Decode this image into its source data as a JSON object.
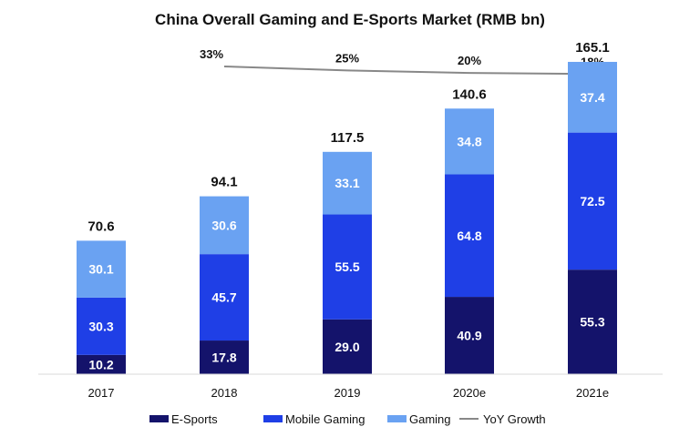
{
  "chart_data": {
    "type": "bar",
    "stacked": true,
    "title": "China Overall Gaming and E-Sports Market (RMB bn)",
    "categories": [
      "2017",
      "2018",
      "2019",
      "2020e",
      "2021e"
    ],
    "series": [
      {
        "name": "E-Sports",
        "color": "#14136b",
        "values": [
          10.2,
          17.8,
          29.0,
          40.9,
          55.3
        ],
        "labels": [
          "10.2",
          "17.8",
          "29.0",
          "40.9",
          "55.3"
        ]
      },
      {
        "name": "Mobile Gaming",
        "color": "#1f3fe6",
        "values": [
          30.3,
          45.7,
          55.5,
          64.8,
          72.5
        ],
        "labels": [
          "30.3",
          "45.7",
          "55.5",
          "64.8",
          "72.5"
        ]
      },
      {
        "name": "Gaming",
        "color": "#6aa2f2",
        "values": [
          30.1,
          30.6,
          33.1,
          34.8,
          37.4
        ],
        "labels": [
          "30.1",
          "30.6",
          "33.1",
          "34.8",
          "37.4"
        ]
      }
    ],
    "totals": [
      "70.6",
      "94.1",
      "117.5",
      "140.6",
      "165.1"
    ],
    "yoy_growth": {
      "name": "YoY Growth",
      "color": "#888888",
      "categories": [
        "2018",
        "2019",
        "2020e",
        "2021e"
      ],
      "values": [
        33,
        25,
        20,
        18
      ],
      "labels": [
        "33%",
        "25%",
        "20%",
        "18%"
      ]
    },
    "ylim": [
      0,
      170
    ],
    "legend_position": "bottom",
    "grid": false
  }
}
